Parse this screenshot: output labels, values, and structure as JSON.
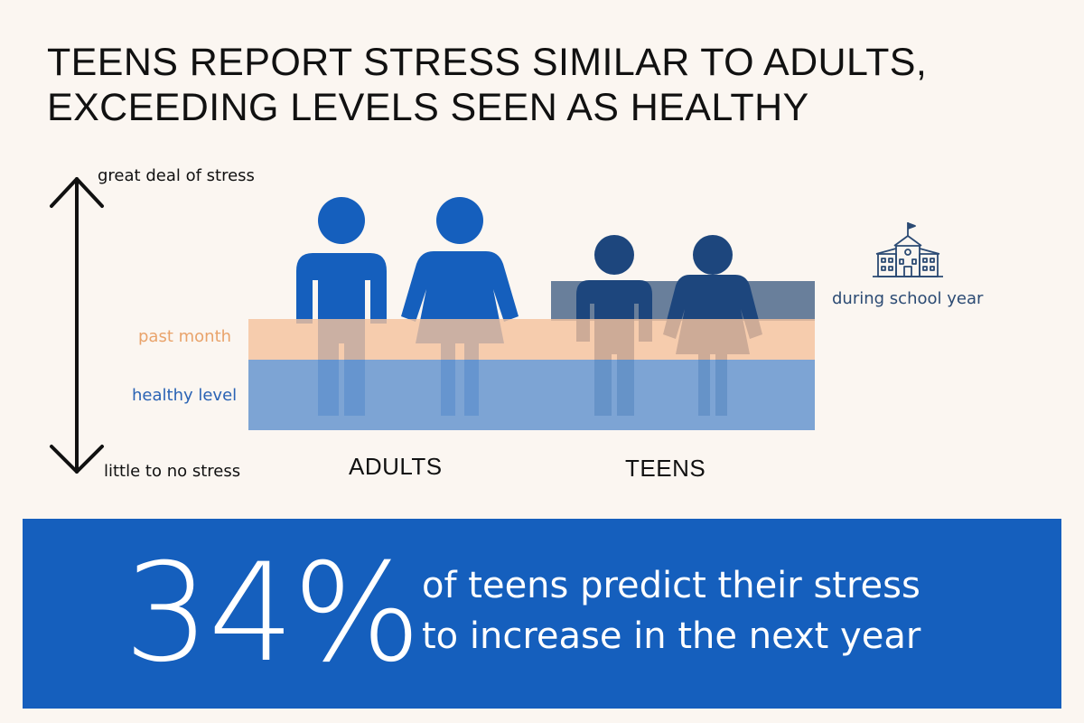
{
  "title": {
    "line1": "TEENS REPORT STRESS SIMILAR TO ADULTS,",
    "line2": "EXCEEDING LEVELS SEEN AS HEALTHY"
  },
  "scale": {
    "top_label": "great deal of stress",
    "bottom_label": "little to no stress"
  },
  "bands": {
    "past_month": {
      "label": "past month",
      "color": "#f4c29e",
      "text_color": "#e9a36b"
    },
    "healthy": {
      "label": "healthy level",
      "color": "#6f9bd0",
      "text_color": "#2a63b4"
    },
    "school_year": {
      "label": "during school year",
      "color": "#697f9b",
      "text_color": "#2b4a73"
    }
  },
  "groups": {
    "adults": {
      "label": "ADULTS",
      "figure_color": "#155fbd"
    },
    "teens": {
      "label": "TEENS",
      "figure_color": "#1d467d"
    }
  },
  "icons": {
    "school": "school-building-icon",
    "arrow": "double-headed-arrow-icon",
    "figures": [
      "adult-man-icon",
      "adult-woman-icon",
      "teen-boy-icon",
      "teen-girl-icon"
    ]
  },
  "stat": {
    "value": "34%",
    "line1": "of teens predict their stress",
    "line2": "to increase in the next year",
    "panel_color": "#155fbd"
  }
}
